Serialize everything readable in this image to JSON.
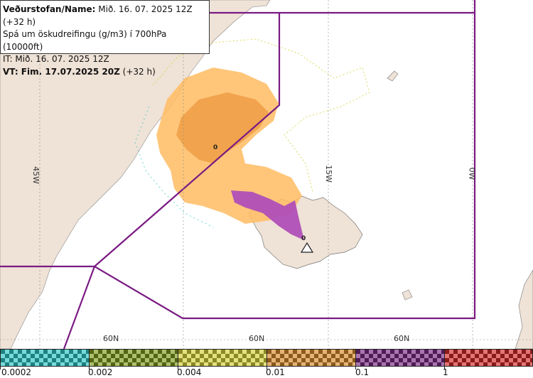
{
  "header": {
    "line1_label": "Veðurstofan/Name:",
    "line1_value": "Mið. 16. 07. 2025 12Z (+32 h)",
    "line2": "Spá um öskudreifingu (g/m3) í 700hPa (10000ft)",
    "line3": "IT: Mið. 16. 07. 2025 12Z",
    "line4_label": "VT: Fim. 17.07.2025 20Z",
    "line4_value": "(+32 h)"
  },
  "grid": {
    "lon_labels": [
      "45W",
      "15W",
      "0W"
    ],
    "lat_labels": [
      "60N",
      "60N",
      "60N"
    ]
  },
  "map": {
    "volcano_marker": "0",
    "contour_label": "0",
    "volcano_icon": "triangle-warning-icon"
  },
  "legend": {
    "bins": [
      {
        "from": "0.0002",
        "to": "0.002",
        "color": "#2ec6c6"
      },
      {
        "from": "0.002",
        "to": "0.004",
        "color": "#7f9c1e"
      },
      {
        "from": "0.004",
        "to": "0.01",
        "color": "#d6d13a"
      },
      {
        "from": "0.01",
        "to": "0.1",
        "color": "#d78a2c"
      },
      {
        "from": "0.1",
        "to": "1",
        "color": "#7b2b85"
      },
      {
        "from": "1",
        "to": "",
        "color": "#d52a2a"
      }
    ],
    "tick_labels": [
      "0.0002",
      "0.002",
      "0.004",
      "0.01",
      "0.1",
      "1"
    ]
  },
  "colors": {
    "sea": "#ffffff",
    "land": "#efe2d6",
    "boundary": "#7a1a82",
    "ash_low": "#ffbc63",
    "ash_mid": "#f0a048",
    "ash_high": "#b04fb8"
  }
}
